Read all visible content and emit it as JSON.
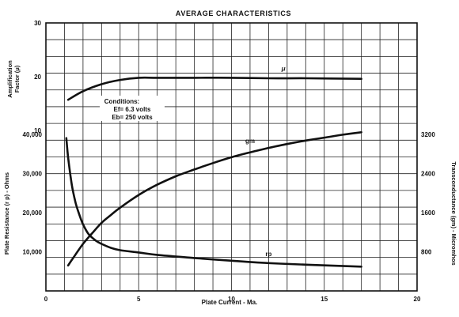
{
  "chart_data": {
    "type": "line",
    "title": "AVERAGE CHARACTERISTICS",
    "xlabel": "Plate Current - Ma.",
    "xlim": [
      0,
      20
    ],
    "x_ticks": [
      "0",
      "5",
      "10",
      "15",
      "20"
    ],
    "grid": true,
    "conditions": {
      "heading": "Conditions:",
      "line1": "Ef= 6.3 volts",
      "line2": "Eb= 250 volts"
    },
    "axes": {
      "upper_left": {
        "label_line1": "Amplification",
        "label_line2": "Factor (μ)",
        "range": [
          10,
          30
        ],
        "ticks": [
          "10",
          "20",
          "30"
        ]
      },
      "lower_left": {
        "label": "Plate Resistance (r p) - Ohms",
        "range": [
          0,
          45000
        ],
        "ticks": [
          "10,000",
          "20,000",
          "30,000",
          "40,000"
        ]
      },
      "right": {
        "label": "Transconductance (gm) - Micromhos",
        "range": [
          0,
          3600
        ],
        "ticks": [
          "800",
          "1600",
          "2400",
          "3200"
        ]
      }
    },
    "series": [
      {
        "name": "μ",
        "axis": "upper_left",
        "x": [
          1.2,
          2,
          3,
          4,
          5,
          6,
          8,
          10,
          12,
          14,
          17
        ],
        "y": [
          15.7,
          17.3,
          18.6,
          19.4,
          19.8,
          19.8,
          19.8,
          19.8,
          19.7,
          19.7,
          19.6
        ]
      },
      {
        "name": "gm",
        "axis": "right",
        "x": [
          1.2,
          1.5,
          2,
          2.5,
          3,
          3.5,
          4,
          5,
          6,
          7,
          8,
          9,
          10,
          11,
          12,
          13,
          14,
          15,
          16,
          17
        ],
        "y": [
          520,
          690,
          960,
          1180,
          1390,
          1550,
          1700,
          1960,
          2170,
          2340,
          2480,
          2610,
          2730,
          2830,
          2920,
          3000,
          3070,
          3130,
          3190,
          3240
        ]
      },
      {
        "name": "rp",
        "axis": "lower_left",
        "x": [
          1.1,
          1.2,
          1.4,
          1.6,
          1.8,
          2,
          2.3,
          2.7,
          3,
          3.5,
          4,
          5,
          6,
          8,
          10,
          12,
          14,
          17
        ],
        "y": [
          39000,
          34000,
          27000,
          22500,
          19500,
          17000,
          14500,
          12800,
          12000,
          11000,
          10400,
          9800,
          9200,
          8400,
          7700,
          7100,
          6700,
          6200
        ]
      }
    ]
  }
}
